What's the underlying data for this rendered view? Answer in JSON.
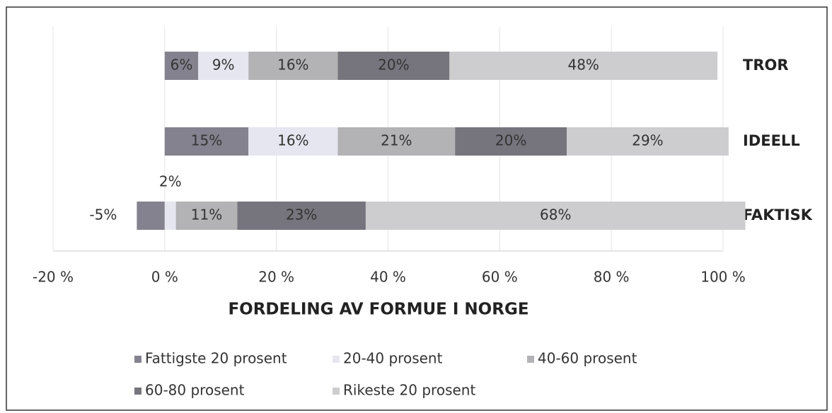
{
  "chart_data": {
    "type": "stacked-bar-horizontal",
    "title": "FORDELING AV FORMUE I NORGE",
    "categories": [
      "TROR",
      "IDEELL",
      "FAKTISK"
    ],
    "series": [
      {
        "name": "Fattigste 20 prosent",
        "color": "#85828f",
        "values": [
          6,
          15,
          -5
        ],
        "value_labels": [
          "6%",
          "15%",
          "-5%"
        ]
      },
      {
        "name": "20-40 prosent",
        "color": "#e6e6f0",
        "values": [
          9,
          16,
          2
        ],
        "value_labels": [
          "9%",
          "16%",
          "2%"
        ]
      },
      {
        "name": "40-60 prosent",
        "color": "#b3b3b6",
        "values": [
          16,
          21,
          11
        ],
        "value_labels": [
          "16%",
          "21%",
          "11%"
        ]
      },
      {
        "name": "60-80 prosent",
        "color": "#76757d",
        "values": [
          20,
          20,
          23
        ],
        "value_labels": [
          "20%",
          "20%",
          "23%"
        ]
      },
      {
        "name": "Rikeste 20 prosent",
        "color": "#cdcdd0",
        "values": [
          48,
          29,
          68
        ],
        "value_labels": [
          "48%",
          "29%",
          "68%"
        ]
      }
    ],
    "xlim": [
      -20,
      100
    ],
    "xticks": [
      {
        "value": -20,
        "label": "-20 %"
      },
      {
        "value": 0,
        "label": "0 %"
      },
      {
        "value": 20,
        "label": "20 %"
      },
      {
        "value": 40,
        "label": "40 %"
      },
      {
        "value": 60,
        "label": "60 %"
      },
      {
        "value": 80,
        "label": "80 %"
      },
      {
        "value": 100,
        "label": "100 %"
      }
    ],
    "grid": true
  }
}
